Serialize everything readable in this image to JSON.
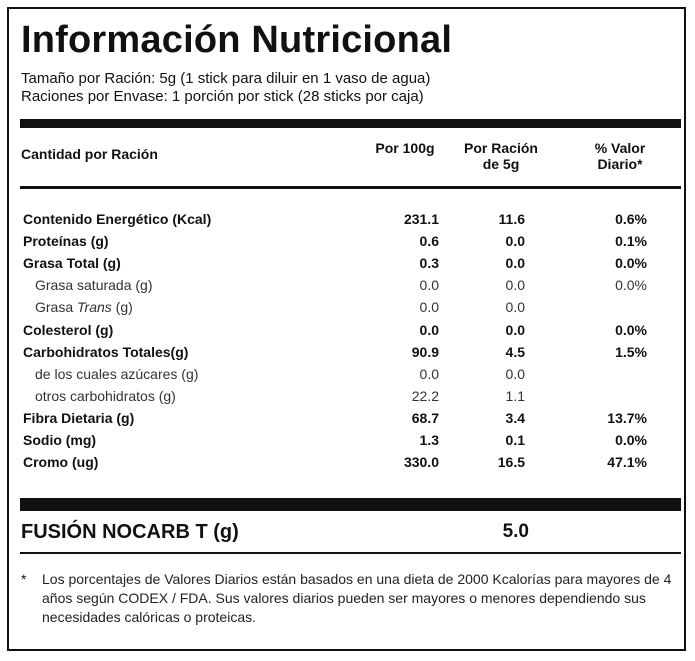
{
  "title": "Información Nutricional",
  "serving_size": "Tamaño por Ración: 5g (1 stick para diluir en 1 vaso de agua)",
  "servings_per_container": "Raciones por Envase: 1 porción por stick (28 sticks por caja)",
  "headers": {
    "amount": "Cantidad por Ración",
    "per100": "Por 100g",
    "per_serving": "Por Ración de 5g",
    "daily_value": "% Valor Diario*"
  },
  "rows": [
    {
      "label": "Contenido Energético (Kcal)",
      "per100": "231.1",
      "per_serving": "11.6",
      "dv": "0.6%",
      "bold": true
    },
    {
      "label": "Proteínas (g)",
      "per100": "0.6",
      "per_serving": "0.0",
      "dv": "0.1%",
      "bold": true
    },
    {
      "label": "Grasa Total (g)",
      "per100": "0.3",
      "per_serving": "0.0",
      "dv": "0.0%",
      "bold": true
    },
    {
      "label": "Grasa saturada (g)",
      "per100": "0.0",
      "per_serving": "0.0",
      "dv": "0.0%",
      "bold": false
    },
    {
      "label_prefix": "Grasa ",
      "label_italic": "Trans",
      "label_suffix": " (g)",
      "per100": "0.0",
      "per_serving": "0.0",
      "dv": "",
      "bold": false
    },
    {
      "label": "Colesterol (g)",
      "per100": "0.0",
      "per_serving": "0.0",
      "dv": "0.0%",
      "bold": true
    },
    {
      "label": "Carbohidratos Totales(g)",
      "per100": "90.9",
      "per_serving": "4.5",
      "dv": "1.5%",
      "bold": true
    },
    {
      "label": "de los cuales azúcares (g)",
      "per100": "0.0",
      "per_serving": "0.0",
      "dv": "",
      "bold": false
    },
    {
      "label": "otros carbohidratos (g)",
      "per100": "22.2",
      "per_serving": "1.1",
      "dv": "",
      "bold": false
    },
    {
      "label": "Fibra Dietaria (g)",
      "per100": "68.7",
      "per_serving": "3.4",
      "dv": "13.7%",
      "bold": true
    },
    {
      "label": "Sodio (mg)",
      "per100": "1.3",
      "per_serving": "0.1",
      "dv": "0.0%",
      "bold": true
    },
    {
      "label": "Cromo (ug)",
      "per100": "330.0",
      "per_serving": "16.5",
      "dv": "47.1%",
      "bold": true
    }
  ],
  "fusion": {
    "label": "FUSIÓN NOCARB T (g)",
    "value": "5.0"
  },
  "footnote": {
    "marker": "*",
    "text": "Los porcentajes de Valores Diarios están basados en una dieta de 2000 Kcalorías para mayores de 4 años según CODEX / FDA. Sus valores diarios pueden ser mayores o menores dependiendo sus necesidades calóricas o proteicas."
  }
}
